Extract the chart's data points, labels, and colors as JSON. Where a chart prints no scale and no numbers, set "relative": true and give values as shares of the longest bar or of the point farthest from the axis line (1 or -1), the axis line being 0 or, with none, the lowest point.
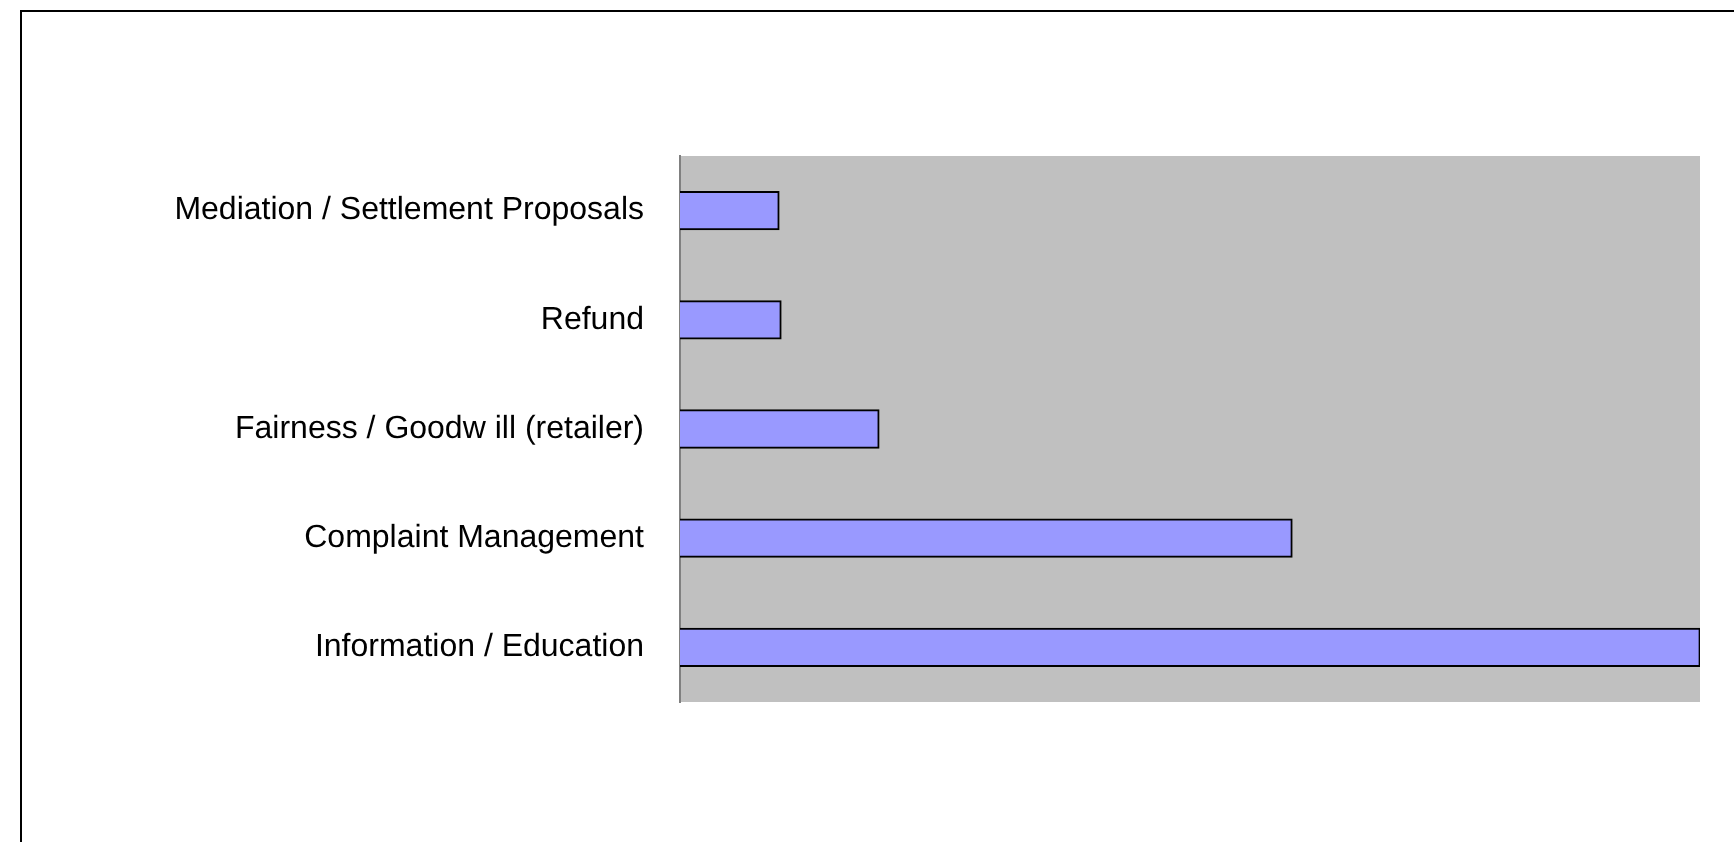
{
  "chart_data": {
    "type": "bar",
    "orientation": "horizontal",
    "relative": true,
    "categories": [
      "Mediation / Settlement Proposals",
      "Refund",
      "Fairness / Goodw ill (retailer)",
      "Complaint Management",
      "Information / Education"
    ],
    "values": [
      0.097,
      0.099,
      0.195,
      0.6,
      1
    ],
    "color": "#9999ff",
    "legend": false
  }
}
